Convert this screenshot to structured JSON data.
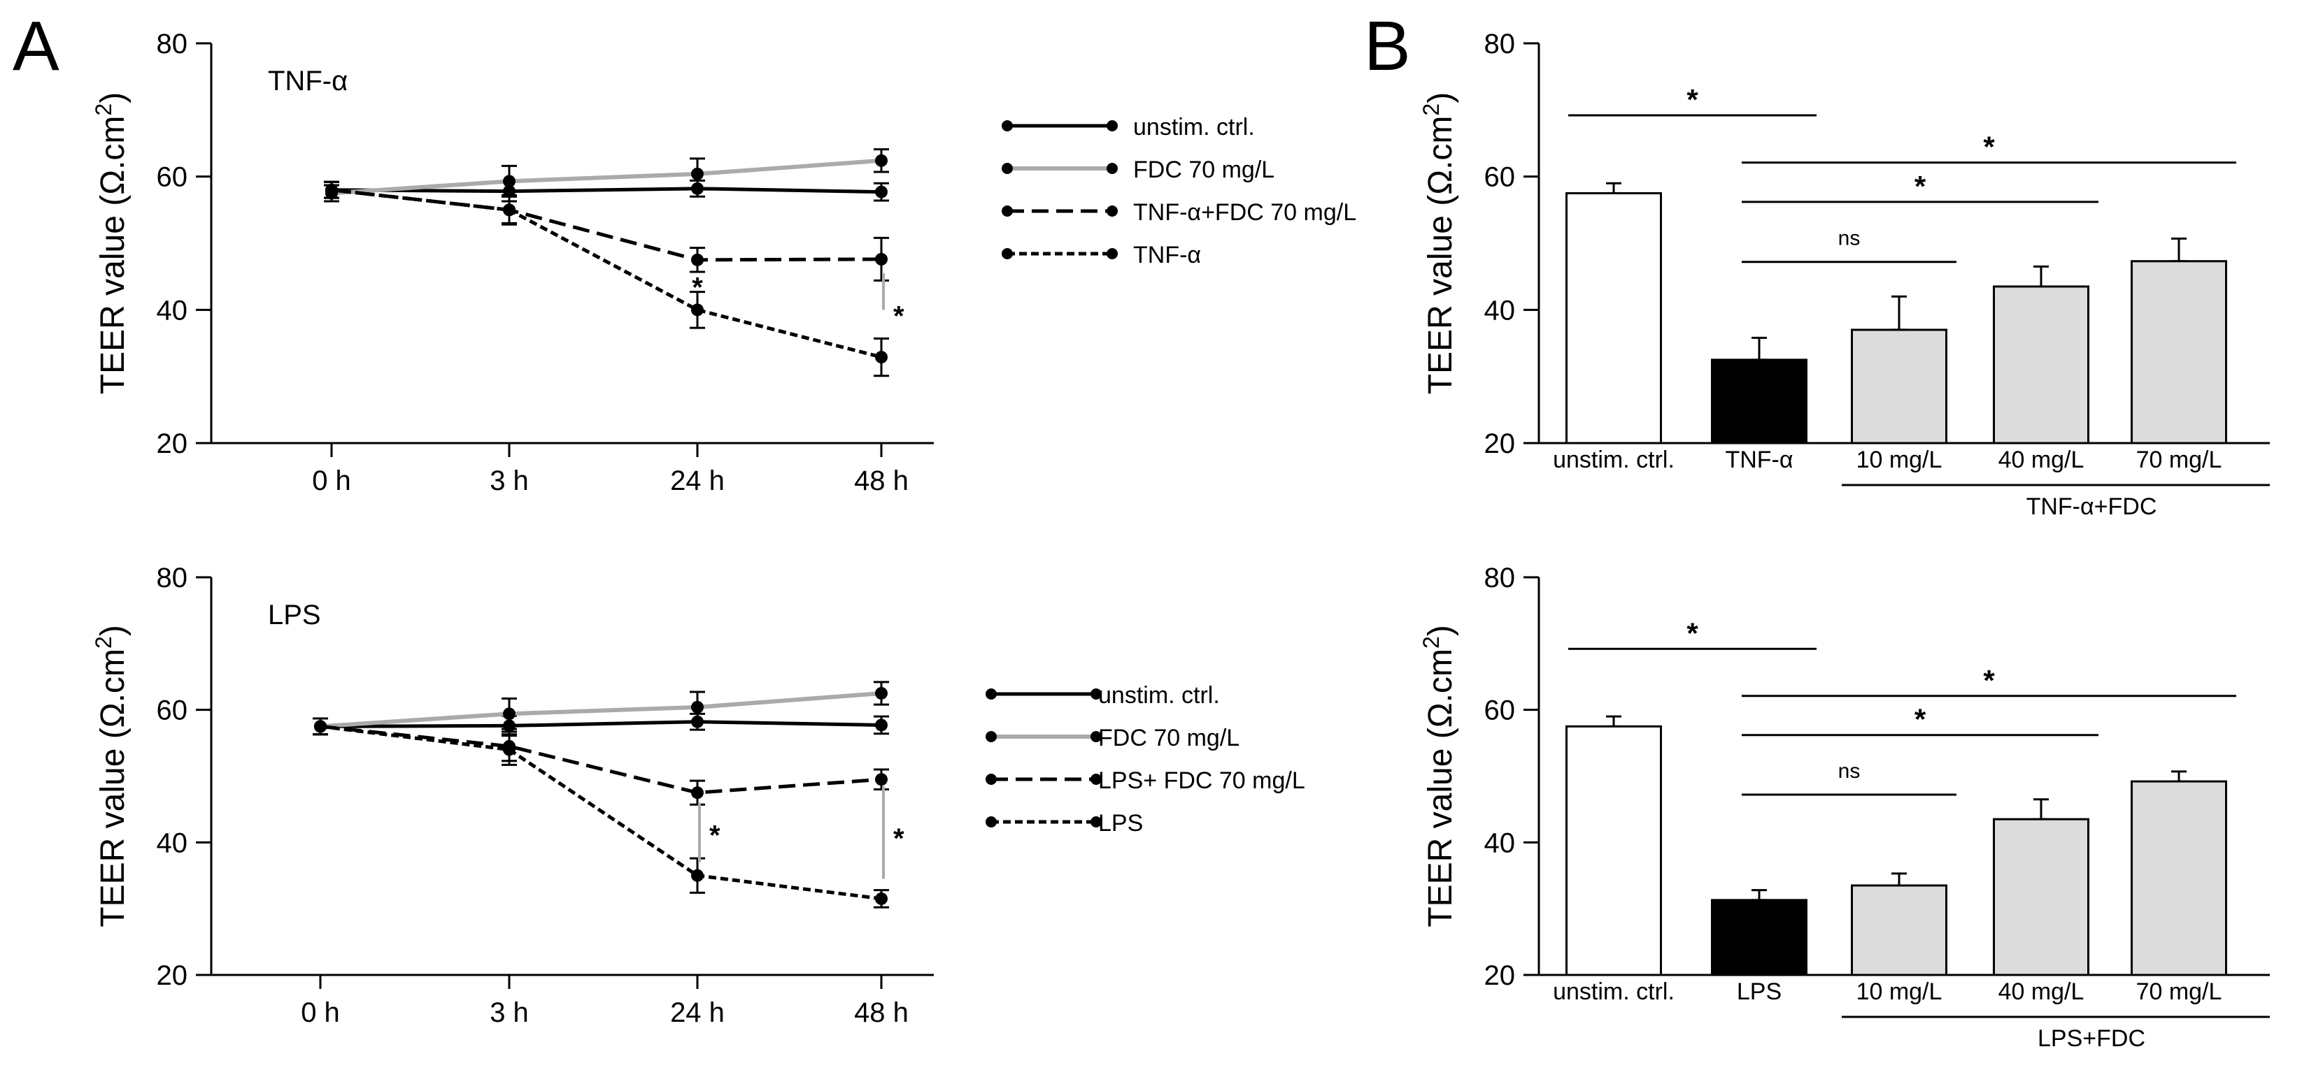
{
  "panel_labels": [
    "A",
    "B"
  ],
  "chart_data": [
    {
      "id": "A_top",
      "type": "line",
      "panel": "A",
      "title": "TNF-α",
      "xlabel": "",
      "ylabel_prefix": "TEER value (Ω.cm",
      "ylabel_sup": "2",
      "ylabel_suffix": ")",
      "categories": [
        "0 h",
        "3 h",
        "24 h",
        "48 h"
      ],
      "ylim": [
        20,
        80
      ],
      "yticks": [
        20,
        40,
        60,
        80
      ],
      "series": [
        {
          "name": "unstim. ctrl.",
          "style": "solid",
          "color": "#000000",
          "values": [
            58,
            57.8,
            58.2,
            57.7
          ],
          "err": [
            1.2,
            1.5,
            1.2,
            1.3
          ]
        },
        {
          "name": "FDC 70 mg/L",
          "style": "solid",
          "color": "#aaaaaa",
          "values": [
            57.5,
            59.3,
            60.4,
            62.4
          ],
          "err": [
            1.2,
            2.3,
            2.3,
            1.7
          ]
        },
        {
          "name": "TNF-α+FDC 70 mg/L",
          "style": "dash",
          "color": "#000000",
          "values": [
            58,
            55,
            47.5,
            47.6
          ],
          "err": [
            1.2,
            2,
            1.8,
            3.2
          ]
        },
        {
          "name": "TNF-α",
          "style": "dot",
          "color": "#000000",
          "values": [
            58,
            55,
            40,
            32.9
          ],
          "err": [
            1.2,
            2.2,
            2.7,
            2.8
          ]
        }
      ],
      "annotations": [
        {
          "text": "*",
          "x": "24 h",
          "y": 44.3
        },
        {
          "text": "*",
          "x": "48 h",
          "y": 40,
          "bar": [
            45.5,
            40
          ]
        }
      ]
    },
    {
      "id": "A_bottom",
      "type": "line",
      "panel": "A",
      "title": "LPS",
      "xlabel": "",
      "ylabel_prefix": "TEER value (Ω.cm",
      "ylabel_sup": "2",
      "ylabel_suffix": ")",
      "categories": [
        "0 h",
        "3 h",
        "24 h",
        "48 h"
      ],
      "ylim": [
        20,
        80
      ],
      "yticks": [
        20,
        40,
        60,
        80
      ],
      "series": [
        {
          "name": "unstim. ctrl.",
          "style": "solid",
          "color": "#000000",
          "values": [
            57.5,
            57.6,
            58.2,
            57.7
          ],
          "err": [
            1.2,
            1.5,
            1.2,
            1.3
          ]
        },
        {
          "name": "FDC 70 mg/L",
          "style": "solid",
          "color": "#aaaaaa",
          "values": [
            57.5,
            59.4,
            60.4,
            62.5
          ],
          "err": [
            1.2,
            2.3,
            2.3,
            1.7
          ]
        },
        {
          "name": "LPS+ FDC 70 mg/L",
          "style": "dash",
          "color": "#000000",
          "values": [
            57.5,
            54.5,
            47.5,
            49.5
          ],
          "err": [
            1.2,
            2.2,
            1.8,
            1.5
          ]
        },
        {
          "name": "LPS",
          "style": "dot",
          "color": "#000000",
          "values": [
            57.5,
            54,
            35,
            31.5
          ],
          "err": [
            1.2,
            2.3,
            2.6,
            1.3
          ]
        }
      ],
      "annotations": [
        {
          "text": "*",
          "x": "24 h",
          "y": 42,
          "bar": [
            46,
            37
          ]
        },
        {
          "text": "*",
          "x": "48 h",
          "y": 41.5,
          "bar": [
            48.5,
            34.5
          ]
        }
      ]
    },
    {
      "id": "B_top",
      "type": "bar",
      "panel": "B",
      "xlabel": "",
      "ylabel_prefix": "TEER value (Ω.cm",
      "ylabel_sup": "2",
      "ylabel_suffix": ")",
      "categories": [
        "unstim. ctrl.",
        "TNF-α",
        "10 mg/L",
        "40 mg/L",
        "70 mg/L"
      ],
      "values": [
        57.5,
        32.5,
        37,
        43.5,
        47.3
      ],
      "err": [
        1.5,
        3.3,
        5,
        3,
        3.4
      ],
      "colors": [
        "#ffffff",
        "#000000",
        "#dcdcdc",
        "#dcdcdc",
        "#dcdcdc"
      ],
      "group_label": "TNF-α+FDC",
      "ylim": [
        20,
        80
      ],
      "yticks": [
        20,
        40,
        60,
        80
      ],
      "significance": [
        {
          "from": 0,
          "to": 1,
          "y": 69.2,
          "label": "*"
        },
        {
          "from": 1,
          "to": 4,
          "y": 62.1,
          "label": "*"
        },
        {
          "from": 1,
          "to": 3,
          "y": 56.2,
          "label": "*"
        },
        {
          "from": 1,
          "to": 2,
          "y": 47.2,
          "label": "ns"
        }
      ]
    },
    {
      "id": "B_bottom",
      "type": "bar",
      "panel": "B",
      "xlabel": "",
      "ylabel_prefix": "TEER value (Ω.cm",
      "ylabel_sup": "2",
      "ylabel_suffix": ")",
      "categories": [
        "unstim. ctrl.",
        "LPS",
        "10 mg/L",
        "40 mg/L",
        "70 mg/L"
      ],
      "values": [
        57.5,
        31.3,
        33.5,
        43.5,
        49.2
      ],
      "err": [
        1.5,
        1.5,
        1.8,
        3,
        1.5
      ],
      "colors": [
        "#ffffff",
        "#000000",
        "#dcdcdc",
        "#dcdcdc",
        "#dcdcdc"
      ],
      "group_label": "LPS+FDC",
      "ylim": [
        20,
        80
      ],
      "yticks": [
        20,
        40,
        60,
        80
      ],
      "significance": [
        {
          "from": 0,
          "to": 1,
          "y": 69.2,
          "label": "*"
        },
        {
          "from": 1,
          "to": 4,
          "y": 62.1,
          "label": "*"
        },
        {
          "from": 1,
          "to": 3,
          "y": 56.2,
          "label": "*"
        },
        {
          "from": 1,
          "to": 2,
          "y": 47.2,
          "label": "ns"
        }
      ]
    }
  ]
}
